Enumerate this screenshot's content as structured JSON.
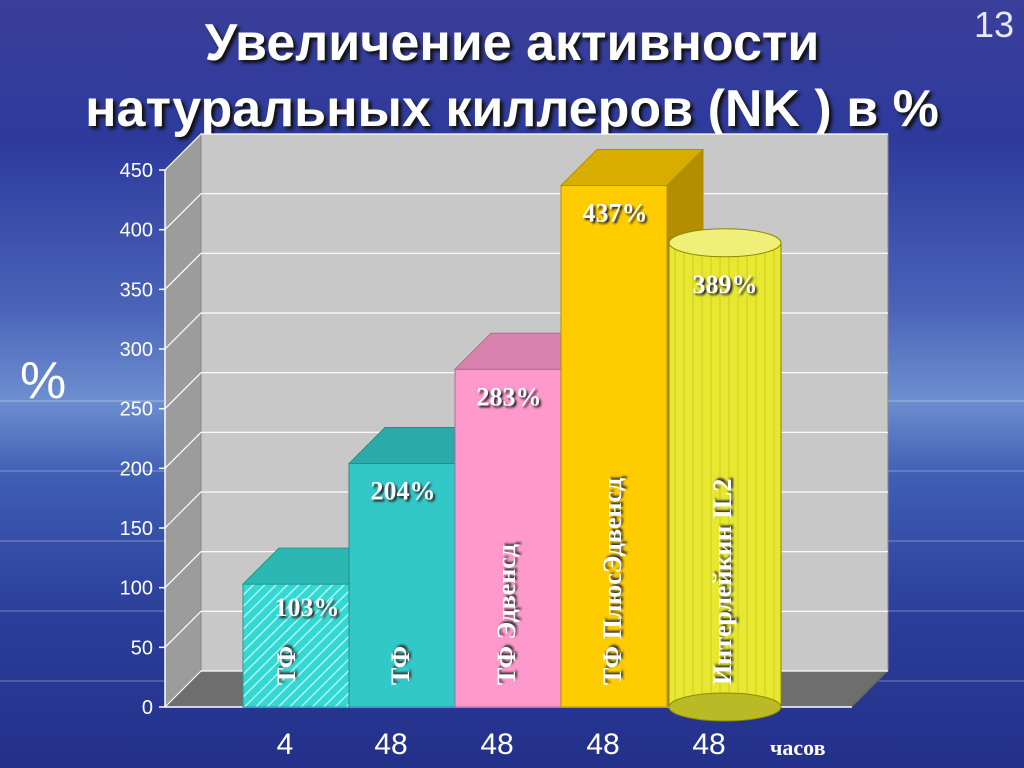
{
  "slide": {
    "title_line1": "Увеличение активности",
    "title_line2": "натуральных киллеров (NK ) в %",
    "page_number": "13"
  },
  "chart_data": {
    "type": "bar",
    "ylabel": "%",
    "ylim": [
      0,
      450
    ],
    "yticks": [
      0,
      50,
      100,
      150,
      200,
      250,
      300,
      350,
      400,
      450
    ],
    "x_unit_label": "часов",
    "categories": [
      "4",
      "48",
      "48",
      "48",
      "48"
    ],
    "values": [
      103,
      204,
      283,
      437,
      389
    ],
    "value_labels": [
      "103%",
      "204%",
      "283%",
      "437%",
      "389%"
    ],
    "bar_names": [
      "ТФ",
      "ТФ",
      "ТФ Эдвенсд",
      "ТФ ПлюсЭдвенсд",
      "Интерлейкин IL2"
    ],
    "bar_colors": [
      "#33d8d2",
      "#33c8c8",
      "#ff99cc",
      "#ffcc00",
      "#e8e830"
    ],
    "bar_shapes": [
      "box-hatched",
      "box",
      "box",
      "box",
      "cylinder"
    ],
    "grid": true,
    "legend": "none"
  }
}
